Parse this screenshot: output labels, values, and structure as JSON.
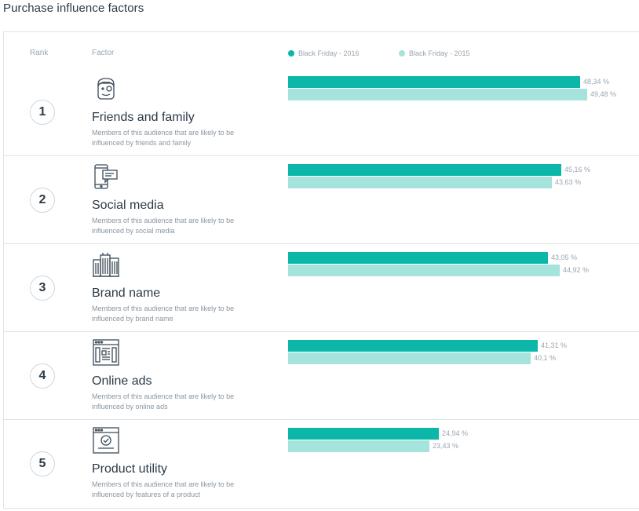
{
  "page": {
    "title": "Purchase influence factors"
  },
  "table": {
    "rank_header": "Rank",
    "factor_header": "Factor"
  },
  "colors": {
    "series_2016": "#0ab7a8",
    "series_2015": "#a5e3dd"
  },
  "legend": [
    {
      "label": "Black Friday - 2016",
      "color": "#0ab7a8"
    },
    {
      "label": "Black Friday - 2015",
      "color": "#a5e3dd"
    }
  ],
  "rows": [
    {
      "rank": "1",
      "icon": "friends-family-icon",
      "name": "Friends and family",
      "desc": "Members of this audience that are likely to be influenced by friends and family",
      "label_2016": "48,34 %",
      "label_2015": "49,48 %"
    },
    {
      "rank": "2",
      "icon": "social-media-icon",
      "name": "Social media",
      "desc": "Members of this audience that are likely to be influenced by social media",
      "label_2016": "45,16 %",
      "label_2015": "43,63 %"
    },
    {
      "rank": "3",
      "icon": "buildings-icon",
      "name": "Brand name",
      "desc": "Members of this audience that are likely to be influenced by brand name",
      "label_2016": "43,05 %",
      "label_2015": "44,92 %"
    },
    {
      "rank": "4",
      "icon": "browser-ads-icon",
      "name": "Online ads",
      "desc": "Members of this audience that are likely to be influenced by online ads",
      "label_2016": "41,31 %",
      "label_2015": "40,1 %"
    },
    {
      "rank": "5",
      "icon": "browser-check-icon",
      "name": "Product utility",
      "desc": "Members of this audience that are likely to be influenced by features of a product",
      "label_2016": "24,94 %",
      "label_2015": "23,43 %"
    }
  ],
  "chart_data": {
    "type": "bar",
    "orientation": "horizontal",
    "categories": [
      "Friends and family",
      "Social media",
      "Brand name",
      "Online ads",
      "Product utility"
    ],
    "series": [
      {
        "name": "Black Friday - 2016",
        "values": [
          48.34,
          45.16,
          43.05,
          41.31,
          24.94
        ]
      },
      {
        "name": "Black Friday - 2015",
        "values": [
          49.48,
          43.63,
          44.92,
          40.1,
          23.43
        ]
      }
    ],
    "unit": "%",
    "legend_position": "top",
    "grid": false
  }
}
